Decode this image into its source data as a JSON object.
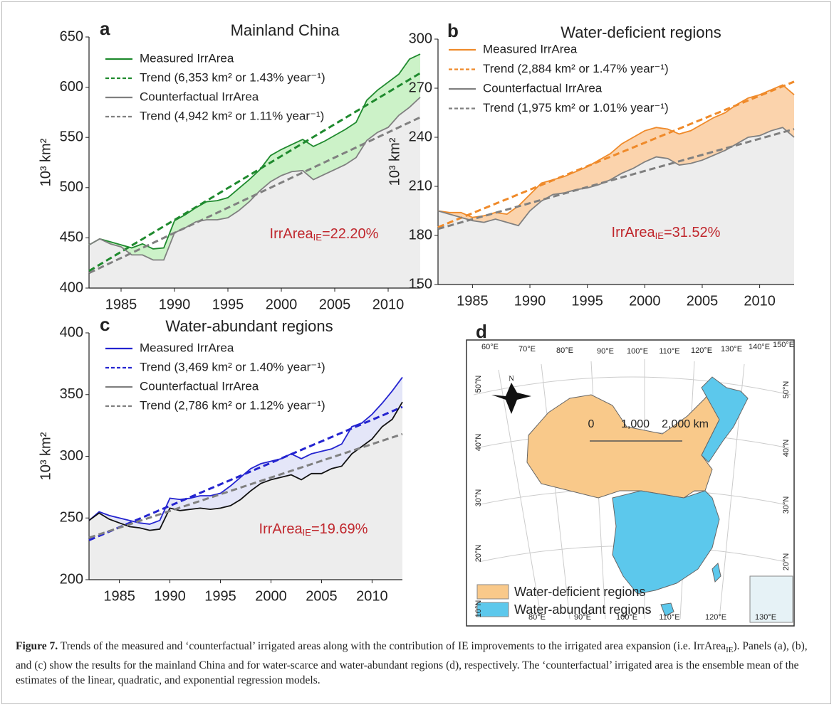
{
  "chart_data": [
    {
      "type": "line",
      "panel_label": "a",
      "title": "Mainland China",
      "y_label": "10³ km²",
      "x": [
        1982,
        1983,
        1984,
        1985,
        1986,
        1987,
        1988,
        1989,
        1990,
        1991,
        1992,
        1993,
        1994,
        1995,
        1996,
        1997,
        1998,
        1999,
        2000,
        2001,
        2002,
        2003,
        2004,
        2005,
        2006,
        2007,
        2008,
        2009,
        2010,
        2011,
        2012,
        2013
      ],
      "xlim": [
        1982,
        2013
      ],
      "xticks": [
        1985,
        1990,
        1995,
        2000,
        2005,
        2010
      ],
      "ylim": [
        400,
        650
      ],
      "yticks": [
        400,
        450,
        500,
        550,
        600,
        650
      ],
      "band_color": "#ccf2c8",
      "area_color": "#ededed",
      "series": [
        {
          "name": "Measured IrrArea",
          "color": "#1f8a2e",
          "values": [
            443,
            449,
            446,
            443,
            440,
            444,
            439,
            440,
            467,
            473,
            480,
            486,
            487,
            490,
            499,
            508,
            518,
            532,
            538,
            543,
            548,
            541,
            546,
            552,
            558,
            565,
            587,
            597,
            605,
            613,
            628,
            633
          ]
        },
        {
          "name": "Trend (6,353 km² or 1.43% year⁻¹)",
          "color": "#1f8a2e",
          "dash": true,
          "x": [
            1982,
            2013
          ],
          "values": [
            417,
            614
          ]
        },
        {
          "name": "Counterfactual IrrArea",
          "color": "#808080",
          "values": [
            443,
            449,
            444,
            441,
            433,
            433,
            428,
            428,
            455,
            460,
            466,
            468,
            468,
            470,
            477,
            486,
            497,
            506,
            512,
            516,
            517,
            508,
            513,
            518,
            523,
            530,
            547,
            555,
            560,
            572,
            580,
            590
          ]
        },
        {
          "name": "Trend (4,942 km² or 1.11% year⁻¹)",
          "color": "#808080",
          "dash": true,
          "x": [
            1982,
            2013
          ],
          "values": [
            415,
            570
          ]
        }
      ],
      "annotation": {
        "text": "IrrArea",
        "sub": "IE",
        "rest": "=22.20%"
      }
    },
    {
      "type": "line",
      "panel_label": "b",
      "title": "Water-deficient regions",
      "y_label": "10³ km²",
      "x": [
        1982,
        1983,
        1984,
        1985,
        1986,
        1987,
        1988,
        1989,
        1990,
        1991,
        1992,
        1993,
        1994,
        1995,
        1996,
        1997,
        1998,
        1999,
        2000,
        2001,
        2002,
        2003,
        2004,
        2005,
        2006,
        2007,
        2008,
        2009,
        2010,
        2011,
        2012,
        2013
      ],
      "xlim": [
        1982,
        2013
      ],
      "xticks": [
        1985,
        1990,
        1995,
        2000,
        2005,
        2010
      ],
      "ylim": [
        150,
        300
      ],
      "yticks": [
        150,
        180,
        210,
        240,
        270,
        300
      ],
      "band_color": "#fbd3ac",
      "area_color": "#ededed",
      "series": [
        {
          "name": "Measured IrrArea",
          "color": "#ef8a2a",
          "values": [
            195,
            194,
            194,
            191,
            192,
            194,
            193,
            198,
            205,
            212,
            214,
            216,
            219,
            222,
            226,
            230,
            236,
            240,
            244,
            246,
            245,
            242,
            244,
            248,
            252,
            255,
            260,
            264,
            266,
            269,
            272,
            266
          ]
        },
        {
          "name": "Trend (2,884 km² or 1.47% year⁻¹)",
          "color": "#ef8a2a",
          "dash": true,
          "x": [
            1982,
            2013
          ],
          "values": [
            185,
            274
          ]
        },
        {
          "name": "Counterfactual IrrArea",
          "color": "#808080",
          "values": [
            195,
            193,
            191,
            189,
            188,
            190,
            188,
            186,
            195,
            201,
            205,
            206,
            208,
            209,
            211,
            214,
            218,
            221,
            225,
            228,
            227,
            223,
            224,
            226,
            229,
            232,
            236,
            240,
            241,
            244,
            246,
            240
          ]
        },
        {
          "name": "Trend (1,975 km² or 1.01% year⁻¹)",
          "color": "#808080",
          "dash": true,
          "x": [
            1982,
            2013
          ],
          "values": [
            184,
            245
          ]
        }
      ],
      "annotation": {
        "text": "IrrArea",
        "sub": "IE",
        "rest": "=31.52%"
      }
    },
    {
      "type": "line",
      "panel_label": "c",
      "title": "Water-abundant regions",
      "y_label": "10³ km²",
      "x": [
        1982,
        1983,
        1984,
        1985,
        1986,
        1987,
        1988,
        1989,
        1990,
        1991,
        1992,
        1993,
        1994,
        1995,
        1996,
        1997,
        1998,
        1999,
        2000,
        2001,
        2002,
        2003,
        2004,
        2005,
        2006,
        2007,
        2008,
        2009,
        2010,
        2011,
        2012,
        2013
      ],
      "xlim": [
        1982,
        2013
      ],
      "xticks": [
        1985,
        1990,
        1995,
        2000,
        2005,
        2010
      ],
      "ylim": [
        200,
        400
      ],
      "yticks": [
        200,
        250,
        300,
        350,
        400
      ],
      "band_color": "#e4e6f8",
      "area_color": "#ededed",
      "series": [
        {
          "name": "Measured IrrArea",
          "color": "#2424d0",
          "values": [
            248,
            255,
            252,
            250,
            248,
            246,
            245,
            248,
            266,
            265,
            266,
            268,
            268,
            270,
            276,
            283,
            290,
            294,
            296,
            298,
            302,
            298,
            302,
            304,
            306,
            310,
            324,
            327,
            334,
            343,
            353,
            364
          ]
        },
        {
          "name": "Trend (3,469 km² or 1.40% year⁻¹)",
          "color": "#2424d0",
          "dash": true,
          "x": [
            1982,
            2013
          ],
          "values": [
            232,
            340
          ]
        },
        {
          "name": "Counterfactual IrrArea",
          "color": "#111111",
          "legend_color": "#808080",
          "values": [
            248,
            254,
            249,
            246,
            243,
            242,
            240,
            241,
            258,
            256,
            257,
            258,
            257,
            258,
            260,
            265,
            272,
            278,
            281,
            283,
            285,
            281,
            286,
            286,
            290,
            292,
            302,
            308,
            314,
            324,
            330,
            344
          ]
        },
        {
          "name": "Trend (2,786 km² or 1.12% year⁻¹)",
          "color": "#808080",
          "dash": true,
          "x": [
            1982,
            2013
          ],
          "values": [
            234,
            318
          ]
        }
      ],
      "annotation": {
        "text": "IrrArea",
        "sub": "IE",
        "rest": "=19.69%"
      }
    }
  ],
  "map": {
    "panel_label": "d",
    "top_lon": [
      "60°E",
      "70°E",
      "80°E",
      "90°E",
      "100°E",
      "110°E",
      "120°E",
      "130°E",
      "140°E",
      "150°E"
    ],
    "bottom_lon": [
      "80°E",
      "90°E",
      "100°E",
      "110°E",
      "120°E",
      "130°E"
    ],
    "left_lat": [
      "50°N",
      "40°N",
      "30°N",
      "20°N",
      "10°N"
    ],
    "right_lat": [
      "50°N",
      "40°N",
      "30°N",
      "20°N"
    ],
    "north": "N",
    "scale": [
      "0",
      "1,000",
      "2,000 km"
    ],
    "legend": [
      "Water-deficient regions",
      "Water-abundant regions"
    ]
  },
  "caption": {
    "label": "Figure 7.",
    "text_1": " Trends of the measured and ‘counterfactual’ irrigated areas along with the contribution of IE improvements to the irrigated area expansion (i.e. IrrArea",
    "sub": "IE",
    "text_2": "). Panels (a), (b), and (c) show the results for the mainland China and for water-scarce and water-abundant regions (d), respectively. The ‘counterfactual’ irrigated area is the ensemble mean of the estimates of the linear, quadratic, and exponential regression models."
  }
}
